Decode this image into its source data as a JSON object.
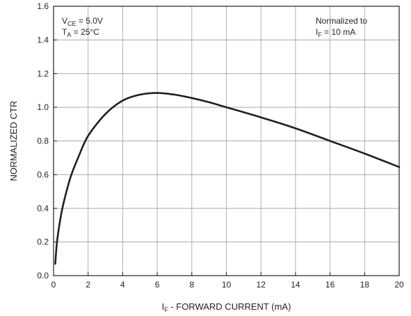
{
  "chart_data": {
    "type": "line",
    "title": "",
    "xlabel": {
      "symbol": "I",
      "subscript": "F",
      "text": " - FORWARD CURRENT (mA)"
    },
    "ylabel": "NORMALIZED CTR",
    "xlim": [
      0,
      20
    ],
    "ylim": [
      0,
      1.6
    ],
    "x_ticks": [
      "0",
      "2",
      "4",
      "6",
      "8",
      "10",
      "12",
      "14",
      "16",
      "18",
      "20"
    ],
    "y_ticks": [
      "0.0",
      "0.2",
      "0.4",
      "0.6",
      "0.8",
      "1.0",
      "1.2",
      "1.4",
      "1.6"
    ],
    "grid": true,
    "annotations": {
      "left": [
        {
          "symbol": "V",
          "subscript": "CE",
          "text": " = 5.0V"
        },
        {
          "symbol": "T",
          "subscript": "A",
          "text": " = 25°C"
        }
      ],
      "right": [
        {
          "symbol": "",
          "subscript": "",
          "text": "Normalized to"
        },
        {
          "symbol": "I",
          "subscript": "F",
          "text": " = 10 mA"
        }
      ]
    },
    "series": [
      {
        "x": [
          0.1,
          0.2,
          0.4,
          0.6,
          1.0,
          1.5,
          2.0,
          3.0,
          4.0,
          5.0,
          6.0,
          7.0,
          8.0,
          9.0,
          10.0,
          12.0,
          14.0,
          16.0,
          18.0,
          20.0
        ],
        "values": [
          0.07,
          0.2,
          0.34,
          0.44,
          0.59,
          0.72,
          0.83,
          0.96,
          1.04,
          1.075,
          1.085,
          1.075,
          1.055,
          1.03,
          1.0,
          0.94,
          0.875,
          0.8,
          0.725,
          0.645
        ]
      }
    ]
  },
  "colors": {
    "axis": "#231f20",
    "grid": "#a7a9ac",
    "curve": "#231f20"
  }
}
